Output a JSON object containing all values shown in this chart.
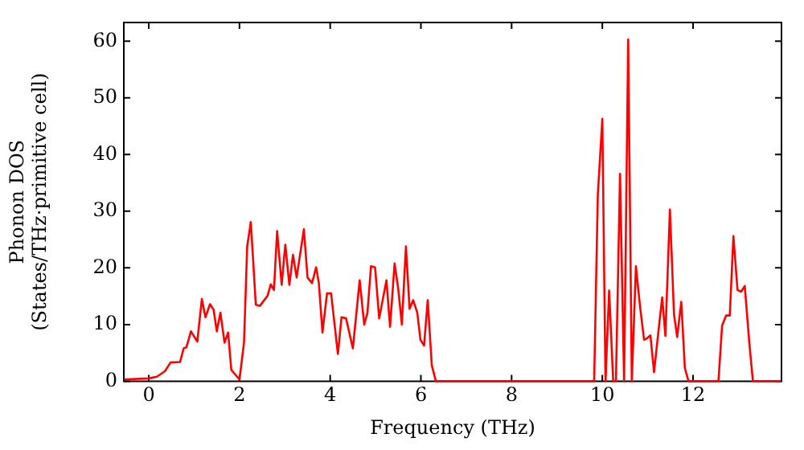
{
  "chart_data": {
    "type": "line",
    "xlabel": "Frequency (THz)",
    "ylabel": "Phonon DOS\n(States/THz·primitive cell)",
    "x": [
      -0.54,
      0,
      0.18,
      0.36,
      0.48,
      0.69,
      0.77,
      0.83,
      0.93,
      1.07,
      1.17,
      1.25,
      1.35,
      1.43,
      1.5,
      1.58,
      1.67,
      1.75,
      1.82,
      2.0,
      2.1,
      2.17,
      2.25,
      2.36,
      2.45,
      2.62,
      2.69,
      2.76,
      2.83,
      2.93,
      3.01,
      3.1,
      3.18,
      3.26,
      3.42,
      3.5,
      3.6,
      3.69,
      3.75,
      3.83,
      3.93,
      4.02,
      4.17,
      4.25,
      4.35,
      4.5,
      4.65,
      4.75,
      4.82,
      4.9,
      4.99,
      5.08,
      5.24,
      5.32,
      5.42,
      5.5,
      5.58,
      5.67,
      5.75,
      5.83,
      5.92,
      5.99,
      6.07,
      6.15,
      6.24,
      6.33,
      9.82,
      9.9,
      10.0,
      10.07,
      10.15,
      10.24,
      10.3,
      10.39,
      10.48,
      10.57,
      10.65,
      10.74,
      10.83,
      10.92,
      10.99,
      11.06,
      11.14,
      11.25,
      11.32,
      11.39,
      11.49,
      11.58,
      11.65,
      11.74,
      11.82,
      11.9,
      12.56,
      12.64,
      12.73,
      12.81,
      12.89,
      12.98,
      13.06,
      13.14,
      13.24,
      13.32,
      13.93
    ],
    "series": [
      {
        "color": "#ff0000",
        "values": [
          0.3,
          0.5,
          0.8,
          1.8,
          3.3,
          3.4,
          5.8,
          6,
          8.8,
          7,
          14.5,
          11.3,
          13.6,
          12.6,
          8.8,
          12.1,
          6.8,
          8.6,
          2,
          0.3,
          6.8,
          23.8,
          28.1,
          13.5,
          13.3,
          15.1,
          17.1,
          16.1,
          26.5,
          17,
          24.1,
          17,
          22.3,
          18.3,
          26.8,
          18.3,
          17.3,
          20.1,
          17.3,
          8.6,
          15.5,
          15.5,
          4.8,
          11.3,
          11.1,
          5.8,
          17.8,
          10,
          12,
          20.3,
          20.1,
          11.1,
          17.8,
          9.6,
          20.8,
          16.3,
          10,
          23.8,
          12.8,
          14.3,
          12.1,
          7.3,
          6.3,
          14.3,
          2.8,
          0,
          0,
          32.8,
          46.3,
          0,
          16,
          0,
          0,
          36.6,
          0,
          60.3,
          0,
          20.3,
          13.3,
          7.3,
          7.6,
          8.1,
          1.6,
          9.8,
          14.8,
          8,
          30.3,
          11.8,
          7.8,
          14,
          2.3,
          0,
          0,
          9.8,
          11.6,
          11.6,
          25.6,
          16.1,
          15.8,
          16.8,
          6.8,
          0,
          0
        ]
      }
    ],
    "xlim": [
      -0.55,
      13.95
    ],
    "ylim": [
      0,
      63.3
    ],
    "xticks": [
      0,
      2,
      4,
      6,
      8,
      10,
      12
    ],
    "yticks": [
      0,
      10,
      20,
      30,
      40,
      50,
      60
    ],
    "grid": false,
    "legend": false,
    "marker": "none",
    "line_style": "solid"
  }
}
